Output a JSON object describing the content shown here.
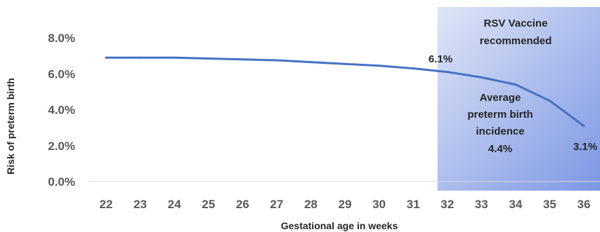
{
  "chart_data": {
    "type": "line",
    "xlabel": "Gestational age in weeks",
    "ylabel": "Risk of preterm birth",
    "x": [
      22,
      23,
      24,
      25,
      26,
      27,
      28,
      29,
      30,
      31,
      32,
      33,
      34,
      35,
      36
    ],
    "series": [
      {
        "values": [
          6.9,
          6.9,
          6.9,
          6.85,
          6.8,
          6.75,
          6.65,
          6.55,
          6.45,
          6.3,
          6.1,
          5.8,
          5.4,
          4.5,
          3.1
        ]
      }
    ],
    "y_ticks": [
      "0.0%",
      "2.0%",
      "4.0%",
      "6.0%",
      "8.0%"
    ],
    "ylim": [
      0,
      8
    ],
    "grid": false,
    "line_color": "#4472C4",
    "highlight_region": {
      "x_start": 32,
      "x_end": 36,
      "label_line1": "RSV Vaccine",
      "label_line2": "recommended",
      "gradient_colors": [
        "#dfe5f6",
        "#7c97e4"
      ]
    },
    "annotations": {
      "average_line1": "Average",
      "average_line2": "preterm birth",
      "average_line3": "incidence",
      "average_line4": "4.4%"
    },
    "data_labels": [
      {
        "x": 32,
        "text": "6.1%"
      },
      {
        "x": 36,
        "text": "3.1%"
      }
    ]
  }
}
